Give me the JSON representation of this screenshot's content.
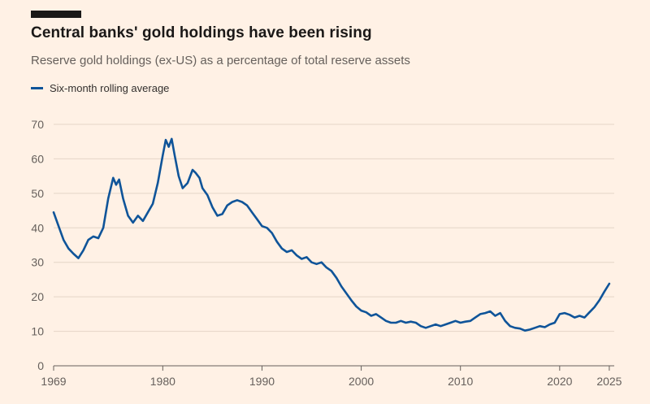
{
  "page": {
    "background_color": "#fff1e5",
    "title_color": "#1a1817",
    "muted_text_color": "#66605c"
  },
  "chart_data": {
    "type": "line",
    "title": "Central banks' gold holdings have been rising",
    "subtitle": "Reserve gold holdings (ex-US) as a percentage of total reserve assets",
    "legend_label": "Six-month rolling average",
    "legend_position": "top-left",
    "xlabel": "",
    "ylabel": "",
    "xlim": [
      1969,
      2025.5
    ],
    "ylim": [
      0,
      70
    ],
    "yticks": [
      0,
      10,
      20,
      30,
      40,
      50,
      60,
      70
    ],
    "xticks": [
      1969,
      1980,
      1990,
      2000,
      2010,
      2020,
      2025
    ],
    "grid": "horizontal",
    "line_color": "#0f5499",
    "grid_color": "#e4d5c7",
    "axis_color": "#66605c",
    "series": [
      {
        "name": "Six-month rolling average",
        "x": [
          1969,
          1969.5,
          1970,
          1970.5,
          1971,
          1971.5,
          1972,
          1972.5,
          1973,
          1973.5,
          1974,
          1974.5,
          1975,
          1975.3,
          1975.6,
          1976,
          1976.5,
          1977,
          1977.5,
          1978,
          1978.5,
          1979,
          1979.5,
          1980,
          1980.3,
          1980.6,
          1980.9,
          1981.2,
          1981.6,
          1982,
          1982.5,
          1983,
          1983.3,
          1983.7,
          1984,
          1984.5,
          1985,
          1985.5,
          1986,
          1986.5,
          1987,
          1987.5,
          1988,
          1988.5,
          1989,
          1989.5,
          1990,
          1990.5,
          1991,
          1991.5,
          1992,
          1992.5,
          1993,
          1993.5,
          1994,
          1994.5,
          1995,
          1995.5,
          1996,
          1996.5,
          1997,
          1997.5,
          1998,
          1998.5,
          1999,
          1999.5,
          2000,
          2000.5,
          2001,
          2001.5,
          2002,
          2002.5,
          2003,
          2003.5,
          2004,
          2004.5,
          2005,
          2005.5,
          2006,
          2006.5,
          2007,
          2007.5,
          2008,
          2008.5,
          2009,
          2009.5,
          2010,
          2010.5,
          2011,
          2011.5,
          2012,
          2012.5,
          2013,
          2013.5,
          2014,
          2014.5,
          2015,
          2015.5,
          2016,
          2016.5,
          2017,
          2017.5,
          2018,
          2018.5,
          2019,
          2019.5,
          2020,
          2020.5,
          2021,
          2021.5,
          2022,
          2022.5,
          2023,
          2023.5,
          2024,
          2024.5,
          2025
        ],
        "y": [
          44.5,
          40.5,
          36.5,
          34,
          32.5,
          31.2,
          33.5,
          36.5,
          37.5,
          37,
          40,
          48.5,
          54.5,
          52.5,
          54,
          48.5,
          43.5,
          41.5,
          43.5,
          42,
          44.5,
          47,
          53,
          61,
          65.5,
          63.5,
          65.8,
          61,
          55,
          51.5,
          53,
          56.8,
          56,
          54.5,
          51.5,
          49.5,
          46,
          43.5,
          44,
          46.5,
          47.5,
          48,
          47.5,
          46.5,
          44.5,
          42.5,
          40.5,
          40,
          38.5,
          36,
          34,
          33,
          33.5,
          32,
          31,
          31.5,
          30,
          29.5,
          30,
          28.5,
          27.5,
          25.5,
          23,
          21,
          19,
          17.2,
          16,
          15.5,
          14.5,
          15,
          14,
          13,
          12.5,
          12.5,
          13,
          12.5,
          12.8,
          12.5,
          11.5,
          11,
          11.5,
          12,
          11.5,
          12,
          12.5,
          13,
          12.5,
          12.8,
          13,
          14,
          15,
          15.3,
          15.8,
          14.5,
          15.3,
          13,
          11.5,
          11,
          10.8,
          10.2,
          10.5,
          11,
          11.5,
          11.2,
          12,
          12.5,
          15,
          15.3,
          14.8,
          14,
          14.5,
          14,
          15.5,
          17,
          19,
          21.5,
          23.8
        ]
      }
    ]
  }
}
